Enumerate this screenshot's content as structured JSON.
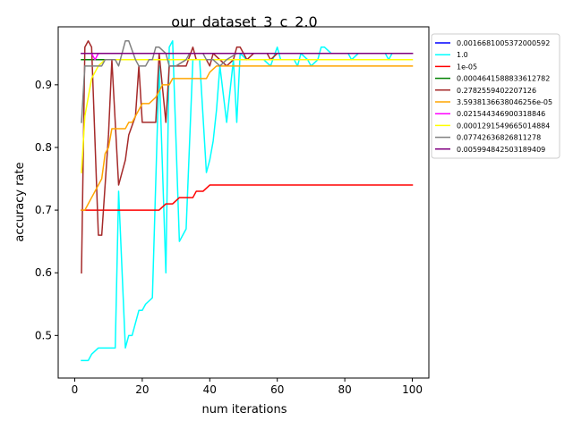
{
  "chart_data": {
    "type": "line",
    "title": "our_dataset_3_c_2.0",
    "xlabel": "num iterations",
    "ylabel": "accuracy rate",
    "xlim": [
      -4.9,
      104.9
    ],
    "ylim": [
      0.432,
      0.9925
    ],
    "xticks": [
      0,
      20,
      40,
      60,
      80,
      100
    ],
    "yticks": [
      0.5,
      0.6,
      0.7,
      0.8,
      0.9
    ],
    "grid": false,
    "legend_position": "outside-right",
    "series": [
      {
        "name": "0.0016681005372000592",
        "color": "#0000ff",
        "points": [
          [
            2,
            0.95
          ],
          [
            100,
            0.95
          ]
        ]
      },
      {
        "name": "1.0",
        "color": "#00ffff",
        "points": [
          [
            2,
            0.46
          ],
          [
            4,
            0.46
          ],
          [
            5,
            0.47
          ],
          [
            7,
            0.48
          ],
          [
            12,
            0.48
          ],
          [
            13,
            0.73
          ],
          [
            15,
            0.48
          ],
          [
            16,
            0.5
          ],
          [
            17,
            0.5
          ],
          [
            19,
            0.54
          ],
          [
            20,
            0.54
          ],
          [
            21,
            0.55
          ],
          [
            23,
            0.56
          ],
          [
            25,
            0.93
          ],
          [
            27,
            0.6
          ],
          [
            28,
            0.96
          ],
          [
            29,
            0.97
          ],
          [
            31,
            0.65
          ],
          [
            33,
            0.67
          ],
          [
            35,
            0.94
          ],
          [
            37,
            0.94
          ],
          [
            39,
            0.76
          ],
          [
            40,
            0.78
          ],
          [
            41,
            0.81
          ],
          [
            42,
            0.86
          ],
          [
            43,
            0.93
          ],
          [
            45,
            0.84
          ],
          [
            47,
            0.94
          ],
          [
            48,
            0.84
          ],
          [
            49,
            0.95
          ],
          [
            51,
            0.94
          ],
          [
            56,
            0.94
          ],
          [
            58,
            0.93
          ],
          [
            60,
            0.96
          ],
          [
            61,
            0.94
          ],
          [
            65,
            0.94
          ],
          [
            66,
            0.93
          ],
          [
            67,
            0.95
          ],
          [
            69,
            0.94
          ],
          [
            70,
            0.93
          ],
          [
            72,
            0.94
          ],
          [
            73,
            0.96
          ],
          [
            74,
            0.96
          ],
          [
            76,
            0.95
          ],
          [
            81,
            0.95
          ],
          [
            82,
            0.94
          ],
          [
            84,
            0.95
          ],
          [
            92,
            0.95
          ],
          [
            93,
            0.94
          ],
          [
            94,
            0.95
          ],
          [
            100,
            0.95
          ]
        ]
      },
      {
        "name": "1e-05",
        "color": "#ff0000",
        "points": [
          [
            2,
            0.7
          ],
          [
            25,
            0.7
          ],
          [
            27,
            0.71
          ],
          [
            29,
            0.71
          ],
          [
            31,
            0.72
          ],
          [
            35,
            0.72
          ],
          [
            36,
            0.73
          ],
          [
            38,
            0.73
          ],
          [
            40,
            0.74
          ],
          [
            100,
            0.74
          ]
        ]
      },
      {
        "name": "0.0004641588833612782",
        "color": "#008000",
        "points": [
          [
            2,
            0.94
          ],
          [
            16,
            0.94
          ]
        ]
      },
      {
        "name": "0.2782559402207126",
        "color": "#a52a2a",
        "points": [
          [
            2,
            0.6
          ],
          [
            3,
            0.96
          ],
          [
            4,
            0.97
          ],
          [
            5,
            0.96
          ],
          [
            7,
            0.66
          ],
          [
            8,
            0.66
          ],
          [
            10,
            0.82
          ],
          [
            11,
            0.94
          ],
          [
            13,
            0.74
          ],
          [
            15,
            0.78
          ],
          [
            16,
            0.82
          ],
          [
            18,
            0.85
          ],
          [
            19,
            0.93
          ],
          [
            20,
            0.84
          ],
          [
            24,
            0.84
          ],
          [
            25,
            0.95
          ],
          [
            27,
            0.84
          ],
          [
            28,
            0.93
          ],
          [
            33,
            0.93
          ],
          [
            35,
            0.96
          ],
          [
            36,
            0.94
          ],
          [
            39,
            0.94
          ],
          [
            40,
            0.93
          ],
          [
            41,
            0.95
          ],
          [
            43,
            0.94
          ],
          [
            45,
            0.93
          ],
          [
            47,
            0.94
          ],
          [
            48,
            0.96
          ],
          [
            49,
            0.96
          ],
          [
            51,
            0.94
          ],
          [
            53,
            0.95
          ],
          [
            57,
            0.95
          ],
          [
            58,
            0.94
          ],
          [
            60,
            0.95
          ],
          [
            100,
            0.95
          ]
        ]
      },
      {
        "name": "3.5938136638046256e-05",
        "color": "#ffa500",
        "points": [
          [
            2,
            0.7
          ],
          [
            3,
            0.7
          ],
          [
            5,
            0.72
          ],
          [
            6,
            0.73
          ],
          [
            8,
            0.75
          ],
          [
            9,
            0.79
          ],
          [
            10,
            0.8
          ],
          [
            11,
            0.83
          ],
          [
            13,
            0.83
          ],
          [
            15,
            0.83
          ],
          [
            16,
            0.84
          ],
          [
            17,
            0.84
          ],
          [
            18,
            0.85
          ],
          [
            20,
            0.87
          ],
          [
            22,
            0.87
          ],
          [
            24,
            0.88
          ],
          [
            25,
            0.89
          ],
          [
            26,
            0.9
          ],
          [
            28,
            0.9
          ],
          [
            29,
            0.91
          ],
          [
            39,
            0.91
          ],
          [
            40,
            0.92
          ],
          [
            42,
            0.93
          ],
          [
            100,
            0.93
          ]
        ]
      },
      {
        "name": "0.021544346900318846",
        "color": "#ff00ff",
        "points": [
          [
            2,
            0.95
          ],
          [
            5,
            0.95
          ],
          [
            6,
            0.94
          ],
          [
            7,
            0.95
          ],
          [
            100,
            0.95
          ]
        ]
      },
      {
        "name": "0.0001291549665014884",
        "color": "#ffff00",
        "points": [
          [
            2,
            0.76
          ],
          [
            3,
            0.85
          ],
          [
            5,
            0.91
          ],
          [
            6,
            0.92
          ],
          [
            7,
            0.93
          ],
          [
            9,
            0.94
          ],
          [
            100,
            0.94
          ]
        ]
      },
      {
        "name": "0.07742636826811278",
        "color": "#808080",
        "points": [
          [
            2,
            0.84
          ],
          [
            3,
            0.93
          ],
          [
            6,
            0.93
          ],
          [
            8,
            0.93
          ],
          [
            9,
            0.94
          ],
          [
            12,
            0.94
          ],
          [
            13,
            0.93
          ],
          [
            15,
            0.97
          ],
          [
            16,
            0.97
          ],
          [
            18,
            0.94
          ],
          [
            19,
            0.93
          ],
          [
            21,
            0.93
          ],
          [
            22,
            0.94
          ],
          [
            23,
            0.94
          ],
          [
            24,
            0.96
          ],
          [
            25,
            0.96
          ],
          [
            27,
            0.95
          ],
          [
            28,
            0.93
          ],
          [
            30,
            0.93
          ],
          [
            33,
            0.94
          ],
          [
            34,
            0.95
          ],
          [
            38,
            0.95
          ],
          [
            39,
            0.94
          ],
          [
            41,
            0.94
          ],
          [
            43,
            0.93
          ],
          [
            45,
            0.94
          ],
          [
            48,
            0.95
          ],
          [
            100,
            0.95
          ]
        ]
      },
      {
        "name": "0.005994842503189409",
        "color": "#800080",
        "points": [
          [
            2,
            0.95
          ],
          [
            100,
            0.95
          ]
        ]
      }
    ]
  }
}
